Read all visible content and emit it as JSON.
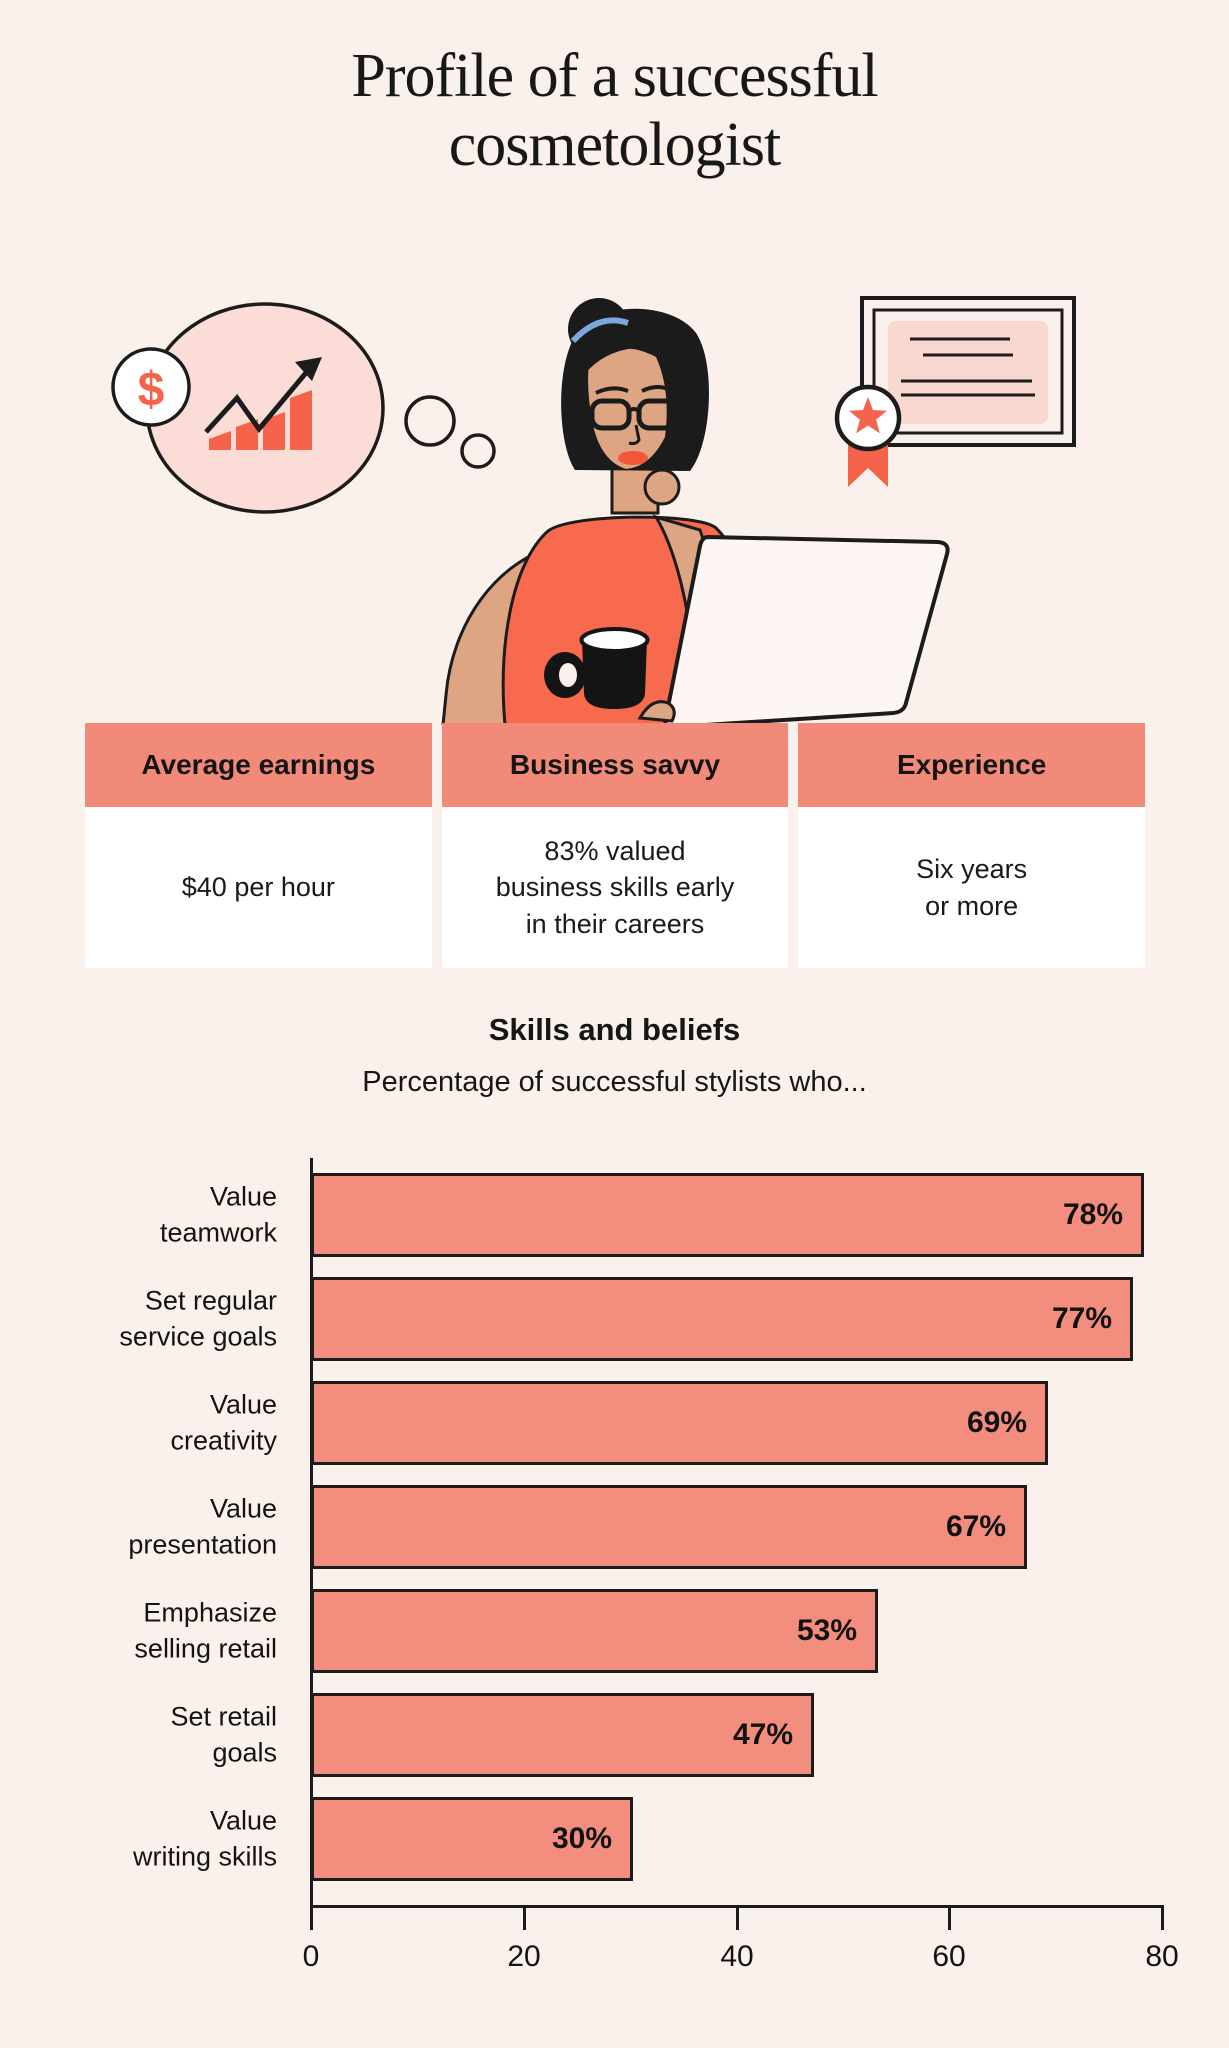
{
  "page": {
    "title": "Profile of a successful\ncosmetologist",
    "background_color": "#fbf1ec",
    "salmon_color": "#f38d7d",
    "accent_orange": "#f4634a"
  },
  "illustration": {
    "dollar_sign": "$",
    "icons": [
      "dollar-icon",
      "growth-chart-icon",
      "thought-bubble",
      "woman-at-laptop",
      "coffee-mug-icon",
      "certificate-icon",
      "medal-star-icon"
    ]
  },
  "stats_table": {
    "columns": [
      {
        "header": "Average earnings",
        "value": "$40 per hour"
      },
      {
        "header": "Business savvy",
        "value": "83% valued\nbusiness skills early\nin their careers"
      },
      {
        "header": "Experience",
        "value": "Six years\nor more"
      }
    ]
  },
  "chart_data": {
    "type": "bar",
    "orientation": "horizontal",
    "title": "Skills and beliefs",
    "subtitle": "Percentage of successful stylists who...",
    "categories": [
      "Value\nteamwork",
      "Set regular\nservice goals",
      "Value\ncreativity",
      "Value\npresentation",
      "Emphasize\nselling retail",
      "Set retail\ngoals",
      "Value\nwriting skills"
    ],
    "values": [
      78,
      77,
      69,
      67,
      53,
      47,
      30
    ],
    "value_labels": [
      "78%",
      "77%",
      "69%",
      "67%",
      "53%",
      "47%",
      "30%"
    ],
    "xlim": [
      0,
      80
    ],
    "x_ticks": [
      0,
      20,
      40,
      60,
      80
    ],
    "grid": false,
    "legend": false,
    "bar_color": "#f38d7d",
    "bar_border_color": "#1c1c1c"
  }
}
